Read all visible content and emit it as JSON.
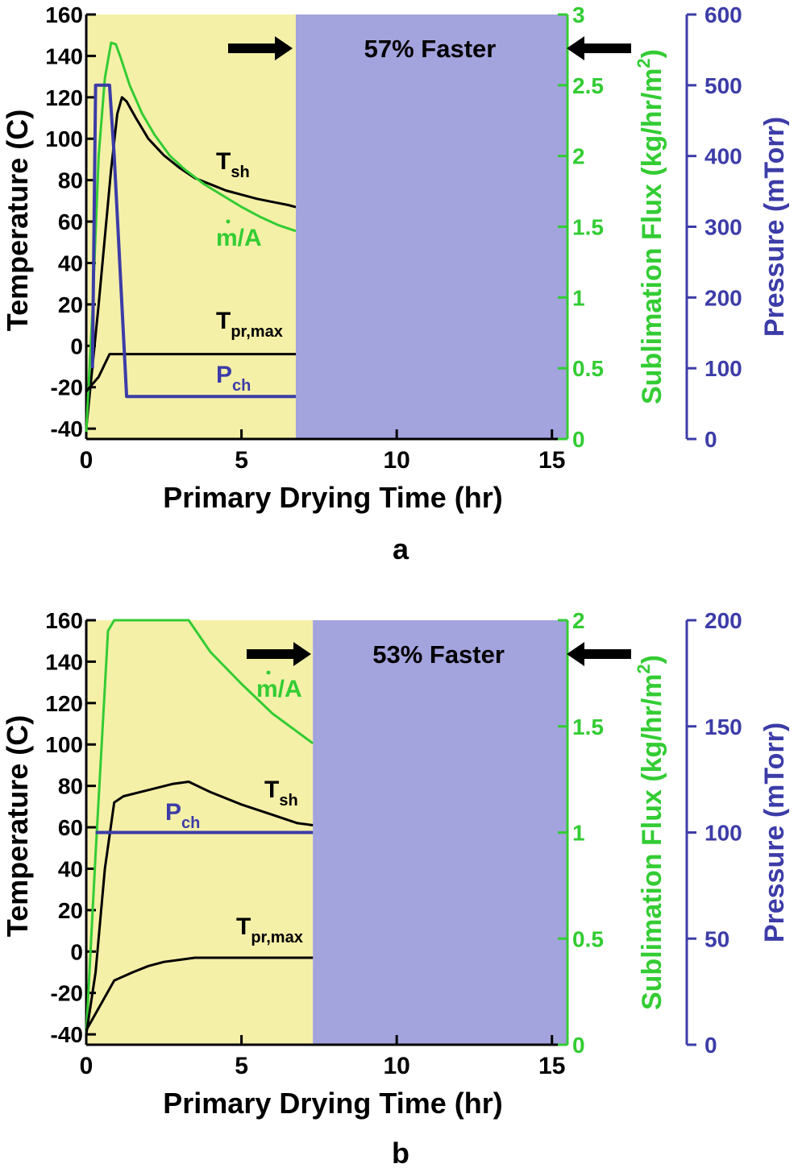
{
  "colors": {
    "temperature": "#000000",
    "flux": "#33cc33",
    "pressure": "#3c3ca8",
    "drying_region": "#f5f0a8",
    "saved_region": "#a3a3de",
    "arrow": "#000000"
  },
  "chart_data": [
    {
      "panel_label": "a",
      "type": "line",
      "xlabel": "Primary Drying Time (hr)",
      "xlim": [
        0,
        15.5
      ],
      "xticks": [
        0,
        5,
        10,
        15
      ],
      "y_axes": {
        "left": {
          "label": "Temperature (C)",
          "ylim": [
            -45,
            160
          ],
          "ticks": [
            -40,
            -20,
            0,
            20,
            40,
            60,
            80,
            100,
            120,
            140,
            160
          ]
        },
        "right1": {
          "label_main": "Sublimation Flux (kg/hr/m",
          "label_sup": "2",
          "label_end": ")",
          "ylim": [
            0,
            3
          ],
          "ticks": [
            "0",
            "0.5",
            "1",
            "1.5",
            "2",
            "2.5",
            "3"
          ]
        },
        "right2": {
          "label": "Pressure (mTorr)",
          "ylim": [
            0,
            600
          ],
          "ticks": [
            0,
            100,
            200,
            300,
            400,
            500,
            600
          ]
        }
      },
      "drying_end": 6.75,
      "annotation": "57% Faster",
      "series": [
        {
          "key": "Tsh",
          "label_main": "T",
          "label_sub": "sh",
          "axis": "left",
          "x": [
            0,
            0.4,
            0.8,
            1.0,
            1.15,
            1.3,
            1.6,
            2.0,
            2.5,
            3.0,
            3.5,
            4.0,
            4.5,
            5.0,
            5.5,
            6.0,
            6.5,
            6.75
          ],
          "y": [
            -40,
            20,
            85,
            112,
            120,
            118,
            110,
            100,
            92,
            86,
            81,
            78,
            75,
            73,
            71,
            69.5,
            68,
            67
          ]
        },
        {
          "key": "mA",
          "label_main": "m/A",
          "axis": "right1",
          "x": [
            0,
            0.2,
            0.4,
            0.6,
            0.8,
            0.95,
            1.1,
            1.4,
            1.8,
            2.2,
            2.7,
            3.2,
            3.8,
            4.4,
            5.0,
            5.6,
            6.2,
            6.75
          ],
          "y": [
            0.05,
            0.9,
            2.0,
            2.55,
            2.8,
            2.79,
            2.7,
            2.5,
            2.3,
            2.15,
            2.0,
            1.9,
            1.8,
            1.72,
            1.64,
            1.57,
            1.51,
            1.47
          ]
        },
        {
          "key": "Tpr",
          "label_main": "T",
          "label_sub": "pr,max",
          "axis": "left",
          "x": [
            0,
            0.4,
            0.75,
            1.0,
            3.0,
            6.75
          ],
          "y": [
            -22,
            -15,
            -4,
            -4,
            -4,
            -4
          ]
        },
        {
          "key": "Pch",
          "label_main": "P",
          "label_sub": "ch",
          "axis": "right2",
          "x": [
            0.2,
            0.3,
            0.75,
            0.9,
            1.3,
            6.75
          ],
          "y": [
            100,
            500,
            500,
            400,
            60,
            60
          ]
        }
      ]
    },
    {
      "panel_label": "b",
      "type": "line",
      "xlabel": "Primary Drying Time (hr)",
      "xlim": [
        0,
        15.5
      ],
      "xticks": [
        0,
        5,
        10,
        15
      ],
      "y_axes": {
        "left": {
          "label": "Temperature (C)",
          "ylim": [
            -45,
            160
          ],
          "ticks": [
            -40,
            -20,
            0,
            20,
            40,
            60,
            80,
            100,
            120,
            140,
            160
          ]
        },
        "right1": {
          "label_main": "Sublimation Flux (kg/hr/m",
          "label_sup": "2",
          "label_end": ")",
          "ylim": [
            0,
            2
          ],
          "ticks": [
            "0",
            "0.5",
            "1",
            "1.5",
            "2"
          ]
        },
        "right2": {
          "label": "Pressure (mTorr)",
          "ylim": [
            0,
            200
          ],
          "ticks": [
            0,
            50,
            100,
            150,
            200
          ]
        }
      },
      "drying_end": 7.3,
      "annotation": "53% Faster",
      "series": [
        {
          "key": "mA",
          "label_main": "m/A",
          "axis": "right1",
          "x": [
            0,
            0.3,
            0.7,
            0.9,
            2.0,
            3.3,
            4.0,
            5.0,
            6.0,
            7.3
          ],
          "y": [
            0.05,
            0.9,
            1.95,
            2.0,
            2.0,
            2.0,
            1.85,
            1.7,
            1.56,
            1.42
          ]
        },
        {
          "key": "Tsh",
          "label_main": "T",
          "label_sub": "sh",
          "axis": "left",
          "x": [
            0,
            0.3,
            0.6,
            0.9,
            1.2,
            2.0,
            2.8,
            3.3,
            4.0,
            5.0,
            6.0,
            6.8,
            7.3
          ],
          "y": [
            -40,
            -10,
            40,
            72,
            75,
            78,
            81,
            82,
            77,
            71,
            66,
            62,
            61
          ]
        },
        {
          "key": "Pch",
          "label_main": "P",
          "label_sub": "ch",
          "axis": "right2",
          "x": [
            0.3,
            7.3
          ],
          "y": [
            100,
            100
          ]
        },
        {
          "key": "Tpr",
          "label_main": "T",
          "label_sub": "pr,max",
          "axis": "left",
          "x": [
            0,
            0.3,
            0.9,
            1.5,
            2.0,
            2.5,
            3.0,
            3.5,
            5.0,
            7.3
          ],
          "y": [
            -38,
            -30,
            -14,
            -10,
            -7,
            -5,
            -4,
            -3,
            -3,
            -3
          ]
        }
      ]
    }
  ]
}
